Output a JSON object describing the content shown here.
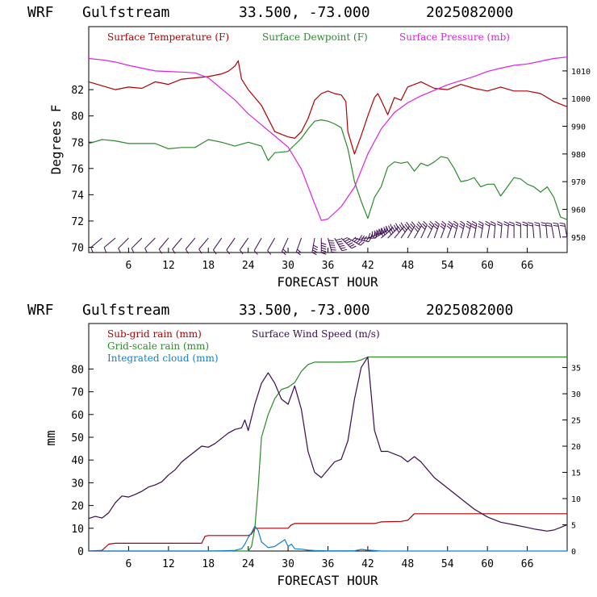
{
  "chart_data": [
    {
      "type": "line",
      "header": {
        "model": "WRF",
        "location": "Gulfstream",
        "coords": "33.500, -73.000",
        "date": "2025082000"
      },
      "xlabel": "FORECAST HOUR",
      "ylabel": "Degrees F",
      "xlim": [
        0,
        72
      ],
      "ylim": [
        69.6,
        86.8
      ],
      "y2lim": [
        944.4,
        1026
      ],
      "xticks": [
        "6",
        "12",
        "18",
        "24",
        "30",
        "36",
        "42",
        "48",
        "54",
        "60",
        "66"
      ],
      "yticks": [
        "70",
        "72",
        "74",
        "76",
        "78",
        "80",
        "82"
      ],
      "y2ticks": [
        "950",
        "960",
        "970",
        "980",
        "990",
        "1000",
        "1010"
      ],
      "colors": {
        "temp": "#b00000",
        "dew": "#2a8a2a",
        "pres": "#e020e0",
        "wind": "#3a0a50"
      },
      "series": [
        {
          "name": "Surface Temperature (F)",
          "axis": "left",
          "color": "#b00000",
          "x": [
            0,
            2,
            4,
            6,
            8,
            10,
            12,
            14,
            16,
            18,
            20,
            21,
            22,
            22.5,
            23,
            24,
            26,
            28,
            30,
            31,
            32,
            33,
            34,
            35,
            36,
            37,
            38,
            38.7,
            39,
            40,
            41,
            42,
            43,
            43.5,
            44,
            45,
            46,
            47,
            48,
            50,
            52,
            54,
            56,
            58,
            60,
            62,
            64,
            66,
            68,
            70,
            72
          ],
          "y": [
            82.6,
            82.3,
            82.0,
            82.2,
            82.1,
            82.6,
            82.4,
            82.8,
            82.9,
            83.0,
            83.2,
            83.4,
            83.8,
            84.2,
            82.8,
            82.0,
            80.8,
            78.8,
            78.4,
            78.3,
            78.8,
            79.8,
            81.2,
            81.7,
            81.9,
            81.7,
            81.6,
            81.1,
            78.8,
            77.1,
            78.5,
            80.0,
            81.4,
            81.7,
            81.2,
            80.1,
            81.4,
            81.2,
            82.2,
            82.6,
            82.1,
            82.0,
            82.4,
            82.1,
            81.9,
            82.2,
            81.9,
            81.9,
            81.7,
            81.1,
            80.7
          ]
        },
        {
          "name": "Surface Dewpoint (F)",
          "axis": "left",
          "color": "#2a8a2a",
          "x": [
            0,
            2,
            4,
            6,
            8,
            10,
            12,
            14,
            16,
            18,
            20,
            22,
            24,
            26,
            27,
            28,
            30,
            31,
            32,
            33,
            34,
            35,
            36,
            37,
            38,
            39,
            40,
            41,
            42,
            43,
            44,
            45,
            46,
            47,
            48,
            49,
            50,
            51,
            52,
            53,
            54,
            55,
            56,
            57,
            58,
            59,
            60,
            61,
            62,
            63,
            64,
            65,
            66,
            67,
            68,
            69,
            70,
            71,
            72
          ],
          "y": [
            77.9,
            78.2,
            78.1,
            77.9,
            77.9,
            77.9,
            77.5,
            77.6,
            77.6,
            78.2,
            78.0,
            77.7,
            78.0,
            77.7,
            76.6,
            77.2,
            77.3,
            77.8,
            78.3,
            79.0,
            79.6,
            79.7,
            79.6,
            79.4,
            79.1,
            77.5,
            75.0,
            73.5,
            72.2,
            73.8,
            74.6,
            76.1,
            76.5,
            76.4,
            76.5,
            75.8,
            76.4,
            76.2,
            76.5,
            76.9,
            76.8,
            76.0,
            75.0,
            75.1,
            75.3,
            74.6,
            74.8,
            74.8,
            73.9,
            74.6,
            75.3,
            75.2,
            74.8,
            74.6,
            74.2,
            74.6,
            73.8,
            72.3,
            72.1
          ]
        },
        {
          "name": "Surface Pressure (mb)",
          "axis": "right",
          "color": "#e020e0",
          "x": [
            0,
            2,
            4,
            6,
            8,
            10,
            12,
            14,
            16,
            18,
            20,
            22,
            24,
            26,
            28,
            30,
            32,
            34,
            35,
            36,
            38,
            40,
            42,
            44,
            46,
            48,
            50,
            52,
            54,
            56,
            58,
            60,
            62,
            64,
            66,
            68,
            70,
            72
          ],
          "y": [
            1014.5,
            1014,
            1013.2,
            1012,
            1011,
            1010,
            1009.8,
            1009.6,
            1009.3,
            1007.5,
            1003.5,
            999.5,
            994.5,
            990.5,
            986.5,
            982.5,
            974.5,
            962,
            956,
            956.5,
            961,
            968,
            980,
            989,
            995,
            998.5,
            1001,
            1003,
            1005,
            1006.5,
            1008,
            1009.8,
            1011,
            1012,
            1012.5,
            1013.5,
            1014.5,
            1015
          ]
        }
      ],
      "wind_barbs": {
        "name": "wind barbs",
        "color": "#3a0a50",
        "x": [
          2,
          4,
          6,
          8,
          10,
          12,
          14,
          16,
          18,
          20,
          22,
          24,
          26,
          28,
          30,
          32,
          34,
          35,
          36,
          37,
          38,
          39,
          40,
          41,
          42,
          43,
          44,
          45,
          46,
          47,
          48,
          49,
          50,
          51,
          52,
          53,
          54,
          55,
          56,
          57,
          58,
          59,
          60,
          61,
          62,
          63,
          64,
          65,
          66,
          67,
          68,
          69,
          70,
          71,
          72
        ],
        "speed_ms": [
          2,
          2,
          3,
          3,
          3,
          4,
          4,
          4,
          5,
          5,
          6,
          6,
          6,
          7,
          8,
          12,
          20,
          27,
          30,
          33,
          31,
          27,
          24,
          22,
          25,
          30,
          35,
          24,
          22,
          20,
          19,
          18,
          17,
          17,
          16,
          16,
          15,
          15,
          14,
          14,
          13,
          13,
          12,
          12,
          11,
          11,
          10,
          10,
          9,
          9,
          9,
          8,
          8,
          8,
          8
        ],
        "direction_deg": [
          230,
          230,
          225,
          225,
          225,
          220,
          220,
          220,
          220,
          215,
          215,
          215,
          210,
          210,
          205,
          200,
          190,
          180,
          165,
          150,
          135,
          120,
          105,
          90,
          70,
          60,
          50,
          45,
          40,
          35,
          30,
          30,
          25,
          25,
          20,
          20,
          20,
          15,
          15,
          15,
          10,
          10,
          10,
          5,
          5,
          5,
          0,
          0,
          0,
          355,
          355,
          355,
          350,
          350,
          350
        ]
      }
    },
    {
      "type": "line",
      "header": {
        "model": "WRF",
        "location": "Gulfstream",
        "coords": "33.500, -73.000",
        "date": "2025082000"
      },
      "xlabel": "FORECAST HOUR",
      "ylabel": "mm",
      "xlim": [
        0,
        72
      ],
      "ylim": [
        0,
        100
      ],
      "y2lim": [
        0,
        43.4
      ],
      "xticks": [
        "6",
        "12",
        "18",
        "24",
        "30",
        "36",
        "42",
        "48",
        "54",
        "60",
        "66"
      ],
      "yticks": [
        "0",
        "10",
        "20",
        "30",
        "40",
        "50",
        "60",
        "70",
        "80"
      ],
      "y2ticks": [
        "0",
        "5",
        "10",
        "15",
        "20",
        "25",
        "30",
        "35"
      ],
      "series": [
        {
          "name": "Sub-grid rain (mm)",
          "axis": "left",
          "color": "#b00000",
          "x": [
            0,
            2,
            3,
            4,
            17,
            17.5,
            18,
            24,
            24.5,
            25,
            30,
            30.5,
            31,
            43,
            44,
            47,
            48,
            49,
            72
          ],
          "y": [
            0,
            0.3,
            3,
            3.4,
            3.4,
            6.5,
            6.8,
            6.8,
            7.5,
            10,
            10,
            11.5,
            12.1,
            12.1,
            12.8,
            13,
            13.5,
            16.4,
            16.4
          ]
        },
        {
          "name": "Grid-scale rain (mm)",
          "axis": "left",
          "color": "#2a8a2a",
          "x": [
            0,
            24,
            24.5,
            25,
            25.5,
            26,
            27,
            28,
            29,
            30,
            31,
            32,
            33,
            34,
            35,
            36,
            38,
            40,
            41,
            42,
            45,
            50,
            72
          ],
          "y": [
            0,
            0,
            2,
            10,
            28,
            50,
            60,
            67,
            71,
            72,
            74,
            79,
            82,
            83,
            83,
            83,
            83,
            83.2,
            84,
            85.3,
            85.3,
            85.3,
            85.3
          ]
        },
        {
          "name": "Integrated cloud (mm)",
          "axis": "left",
          "color": "#1080d0",
          "x": [
            0,
            18,
            20,
            22,
            23,
            23.5,
            24,
            24.5,
            25,
            25.5,
            26,
            27,
            28,
            28.5,
            29,
            29.5,
            30,
            30.5,
            31,
            32,
            33,
            34,
            36,
            40,
            41,
            42,
            43,
            44,
            72
          ],
          "y": [
            0,
            0,
            0.1,
            0.3,
            1,
            3,
            6,
            8,
            11,
            9,
            4,
            1.5,
            2,
            3,
            4,
            5,
            2,
            3,
            1,
            0.8,
            0.4,
            0.2,
            0.1,
            0.1,
            0.7,
            0.4,
            0.2,
            0,
            0
          ]
        },
        {
          "name": "Surface Wind Speed (m/s)",
          "axis": "right",
          "color": "#3a0a50",
          "x": [
            0,
            1,
            2,
            3,
            4,
            5,
            6,
            7,
            8,
            9,
            10,
            11,
            12,
            13,
            14,
            15,
            16,
            17,
            18,
            19,
            20,
            21,
            22,
            23,
            23.5,
            24,
            25,
            26,
            27,
            28,
            29,
            30,
            31,
            32,
            33,
            34,
            35,
            36,
            37,
            38,
            39,
            40,
            41,
            42,
            43,
            44,
            45,
            46,
            47,
            48,
            49,
            50,
            52,
            54,
            56,
            58,
            60,
            62,
            64,
            66,
            67,
            68,
            69,
            70,
            71,
            72
          ],
          "y": [
            6.2,
            6.6,
            6.3,
            7.3,
            9.2,
            10.5,
            10.3,
            10.8,
            11.4,
            12.2,
            12.6,
            13.2,
            14.5,
            15.5,
            17,
            18,
            19,
            20,
            19.8,
            20.5,
            21.5,
            22.5,
            23.2,
            23.5,
            25,
            23,
            28,
            32,
            34,
            32,
            29,
            28,
            31.5,
            27,
            19,
            15,
            14,
            15.5,
            17,
            17.5,
            21,
            29,
            35,
            37,
            23,
            19,
            19,
            18.5,
            18,
            17,
            18,
            17,
            14,
            12,
            10,
            8,
            6.5,
            5.5,
            5,
            4.5,
            4.2,
            4,
            3.8,
            4,
            4.5,
            5
          ]
        }
      ]
    }
  ]
}
